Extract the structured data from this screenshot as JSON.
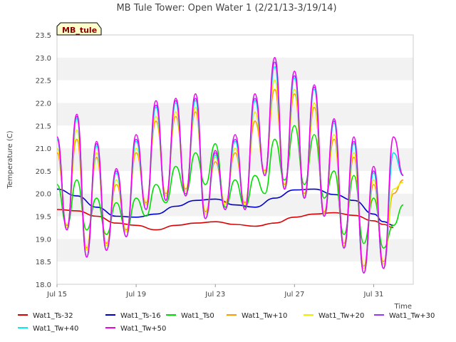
{
  "chart_data": {
    "type": "line",
    "title": "MB Tule Tower: Open Water 1 (2/21/13-3/19/14)",
    "site_label": "MB_tule",
    "xlabel": "Time",
    "ylabel": "Temperature (C)",
    "xlim": [
      0,
      18
    ],
    "ylim": [
      18.0,
      23.5
    ],
    "x_ticks": [
      {
        "x": 0,
        "label": "Jul 15"
      },
      {
        "x": 4,
        "label": "Jul 19"
      },
      {
        "x": 8,
        "label": "Jul 23"
      },
      {
        "x": 12,
        "label": "Jul 27"
      },
      {
        "x": 16,
        "label": "Jul 31"
      }
    ],
    "y_ticks": [
      18.0,
      18.5,
      19.0,
      19.5,
      20.0,
      20.5,
      21.0,
      21.5,
      22.0,
      22.5,
      23.0,
      23.5
    ],
    "grid": "alternating horizontal bands",
    "legend_position": "bottom",
    "series": [
      {
        "name": "Wat1_Ts-32",
        "color": "#dd0000",
        "x": [
          0,
          1,
          2,
          3,
          4,
          5,
          6,
          7,
          8,
          9,
          10,
          11,
          12,
          13,
          14,
          15,
          16,
          16.5,
          17
        ],
        "y": [
          19.65,
          19.62,
          19.5,
          19.35,
          19.3,
          19.2,
          19.3,
          19.35,
          19.38,
          19.32,
          19.28,
          19.35,
          19.48,
          19.55,
          19.58,
          19.52,
          19.4,
          19.32,
          19.25
        ]
      },
      {
        "name": "Wat1_Ts-16",
        "color": "#0000cc",
        "x": [
          0,
          1,
          2,
          3,
          4,
          5,
          6,
          7,
          8,
          9,
          10,
          11,
          12,
          13,
          14,
          15,
          16,
          16.5,
          17
        ],
        "y": [
          20.1,
          19.95,
          19.7,
          19.5,
          19.48,
          19.55,
          19.72,
          19.85,
          19.88,
          19.75,
          19.7,
          19.9,
          20.08,
          20.1,
          19.98,
          19.85,
          19.55,
          19.38,
          19.3
        ]
      },
      {
        "name": "Wat1_Ts0",
        "color": "#00dd00",
        "x": [
          0,
          0.5,
          1,
          1.5,
          2,
          2.5,
          3,
          3.5,
          4,
          4.5,
          5,
          5.5,
          6,
          6.5,
          7,
          7.5,
          8,
          8.5,
          9,
          9.5,
          10,
          10.5,
          11,
          11.5,
          12,
          12.5,
          13,
          13.5,
          14,
          14.5,
          15,
          15.5,
          16,
          16.5,
          17,
          17.5
        ],
        "y": [
          20.2,
          19.3,
          20.3,
          19.2,
          19.9,
          19.1,
          19.8,
          19.2,
          19.9,
          19.5,
          20.2,
          19.8,
          20.6,
          20.0,
          20.9,
          20.2,
          21.1,
          19.7,
          20.3,
          19.7,
          20.4,
          20.0,
          21.2,
          20.3,
          21.5,
          20.2,
          21.3,
          19.9,
          20.5,
          19.1,
          20.4,
          18.9,
          19.9,
          18.8,
          19.3,
          19.75
        ]
      },
      {
        "name": "Wat1_Tw+10",
        "color": "#ff9900",
        "x": [
          0,
          0.5,
          1,
          1.5,
          2,
          2.5,
          3,
          3.5,
          4,
          4.5,
          5,
          5.5,
          6,
          6.5,
          7,
          7.5,
          8,
          8.5,
          9,
          9.5,
          10,
          10.5,
          11,
          11.5,
          12,
          12.5,
          13,
          13.5,
          14,
          14.5,
          15,
          15.5,
          16,
          16.5,
          17,
          17.5
        ],
        "y": [
          20.9,
          19.3,
          21.2,
          18.8,
          20.8,
          18.9,
          20.2,
          19.2,
          20.9,
          19.8,
          21.6,
          20.0,
          21.7,
          20.1,
          21.8,
          19.6,
          20.7,
          19.8,
          20.9,
          19.8,
          21.6,
          20.5,
          22.3,
          20.2,
          22.2,
          20.0,
          21.9,
          19.6,
          21.2,
          18.9,
          20.8,
          18.4,
          20.2,
          18.5,
          20.0,
          20.3
        ]
      },
      {
        "name": "Wat1_Tw+20",
        "color": "#eeee00",
        "x": [
          0,
          0.5,
          1,
          1.5,
          2,
          2.5,
          3,
          3.5,
          4,
          4.5,
          5,
          5.5,
          6,
          6.5,
          7,
          7.5,
          8,
          8.5,
          9,
          9.5,
          10,
          10.5,
          11,
          11.5,
          12,
          12.5,
          13,
          13.5,
          14,
          14.5,
          15,
          15.5,
          16,
          16.5,
          17,
          17.5
        ],
        "y": [
          21.0,
          19.25,
          21.4,
          18.75,
          20.9,
          18.85,
          20.3,
          19.15,
          21.0,
          19.75,
          21.7,
          19.95,
          21.8,
          20.05,
          21.9,
          19.55,
          20.8,
          19.75,
          21.0,
          19.75,
          21.8,
          20.45,
          22.5,
          20.15,
          22.3,
          19.95,
          22.0,
          19.55,
          21.3,
          18.85,
          20.9,
          18.35,
          20.3,
          18.45,
          20.1,
          20.25
        ]
      },
      {
        "name": "Wat1_Tw+30",
        "color": "#9933ff",
        "x": [
          0,
          0.5,
          1,
          1.5,
          2,
          2.5,
          3,
          3.5,
          4,
          4.5,
          5,
          5.5,
          6,
          6.5,
          7,
          7.5,
          8,
          8.5,
          9,
          9.5,
          10,
          10.5,
          11,
          11.5,
          12,
          12.5,
          13,
          13.5,
          14,
          14.5,
          15,
          15.5,
          16,
          16.5,
          17,
          17.5
        ],
        "y": [
          21.2,
          19.2,
          21.7,
          18.6,
          21.1,
          18.75,
          20.5,
          19.05,
          21.2,
          19.65,
          21.95,
          19.85,
          22.05,
          19.95,
          22.1,
          19.45,
          20.9,
          19.65,
          21.2,
          19.65,
          22.1,
          20.4,
          22.9,
          20.1,
          22.6,
          19.9,
          22.35,
          19.5,
          21.6,
          18.8,
          21.15,
          18.25,
          20.5,
          18.35,
          20.9,
          20.4
        ]
      },
      {
        "name": "Wat1_Tw+40",
        "color": "#00eeee",
        "x": [
          0,
          0.5,
          1,
          1.5,
          2,
          2.5,
          3,
          3.5,
          4,
          4.5,
          5,
          5.5,
          6,
          6.5,
          7,
          7.5,
          8,
          8.5,
          9,
          9.5,
          10,
          10.5,
          11,
          11.5,
          12,
          12.5,
          13,
          13.5,
          14,
          14.5,
          15,
          15.5,
          16,
          16.5,
          17,
          17.5
        ],
        "y": [
          21.2,
          19.2,
          21.65,
          18.6,
          21.05,
          18.75,
          20.45,
          19.05,
          21.15,
          19.65,
          21.9,
          19.85,
          22.0,
          19.95,
          22.05,
          19.45,
          20.85,
          19.65,
          21.15,
          19.65,
          22.05,
          20.4,
          22.8,
          20.1,
          22.55,
          19.9,
          22.3,
          19.5,
          21.55,
          18.8,
          21.1,
          18.25,
          20.45,
          18.35,
          20.9,
          20.4
        ]
      },
      {
        "name": "Wat1_Tw+50",
        "color": "#ee00ee",
        "x": [
          0,
          0.5,
          1,
          1.5,
          2,
          2.5,
          3,
          3.5,
          4,
          4.5,
          5,
          5.5,
          6,
          6.5,
          7,
          7.5,
          8,
          8.5,
          9,
          9.5,
          10,
          10.5,
          11,
          11.5,
          12,
          12.5,
          13,
          13.5,
          14,
          14.5,
          15,
          15.5,
          16,
          16.5,
          17,
          17.5
        ],
        "y": [
          21.25,
          19.2,
          21.75,
          18.6,
          21.15,
          18.75,
          20.55,
          19.05,
          21.3,
          19.65,
          22.05,
          19.85,
          22.1,
          19.95,
          22.2,
          19.45,
          20.95,
          19.65,
          21.3,
          19.65,
          22.2,
          20.4,
          23.0,
          20.1,
          22.7,
          19.9,
          22.4,
          19.5,
          21.65,
          18.8,
          21.25,
          18.25,
          20.6,
          18.35,
          21.25,
          20.4
        ]
      }
    ]
  }
}
